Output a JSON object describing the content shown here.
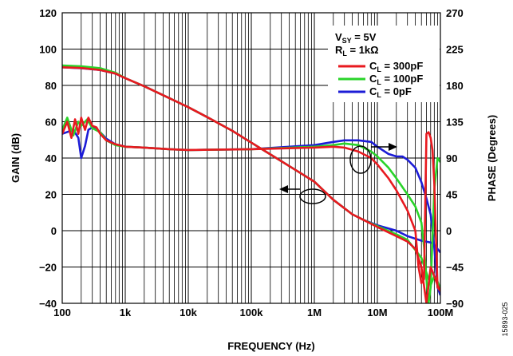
{
  "chart_data": {
    "type": "line",
    "xlabel": "FREQUENCY (Hz)",
    "ylabel": "GAIN (dB)",
    "y2label": "PHASE (Degrees)",
    "x_scale": "log",
    "xlim": [
      100,
      100000000
    ],
    "ylim": [
      -40,
      120
    ],
    "y2lim": [
      -90,
      270
    ],
    "grid": true,
    "x_tick_labels": [
      "100",
      "1k",
      "10k",
      "100k",
      "1M",
      "10M",
      "100M"
    ],
    "y_tick_labels": [
      "120",
      "100",
      "80",
      "60",
      "40",
      "20",
      "0",
      "−20",
      "−40"
    ],
    "y2_tick_labels": [
      "270",
      "225",
      "180",
      "135",
      "90",
      "45",
      "0",
      "−45",
      "−90"
    ],
    "legend_conditions": {
      "vsy": {
        "main": "V",
        "sub": "SY",
        "rest": " = 5V"
      },
      "rl": {
        "main": "R",
        "sub": "L",
        "rest": " = 1kΩ"
      }
    },
    "legend_placement": "top-right",
    "figure_code": "15893-025",
    "series": [
      {
        "name": "300pF",
        "label": {
          "main": "C",
          "sub": "L",
          "rest": " = 300pF"
        },
        "color": "#e8191f",
        "gain": {
          "x": [
            100,
            200,
            400,
            700,
            1000,
            2000,
            5000,
            10000,
            20000,
            50000,
            100000,
            200000,
            500000,
            1000000,
            2000000,
            4000000,
            6000000,
            10000000,
            20000000,
            30000000,
            40000000,
            50000000,
            60000000,
            70000000,
            80000000,
            90000000,
            100000000
          ],
          "y": [
            90,
            89.6,
            88.5,
            86.5,
            84,
            79.5,
            73,
            68,
            62.5,
            55,
            48.5,
            42,
            33.5,
            27,
            17,
            9,
            6,
            2,
            -3,
            -6,
            -10,
            -20,
            -40,
            -20,
            -25,
            -30,
            -33
          ]
        },
        "phase": {
          "x": [
            100,
            120,
            140,
            160,
            180,
            200,
            230,
            260,
            300,
            350,
            400,
            500,
            700,
            1000,
            2000,
            5000,
            10000,
            100000,
            1000000,
            2000000,
            3000000,
            5000000,
            8000000,
            10000000,
            15000000,
            20000000,
            30000000,
            40000000,
            45000000,
            50000000,
            55000000,
            60000000,
            65000000,
            70000000,
            75000000,
            80000000,
            90000000,
            100000000
          ],
          "y": [
            120,
            135,
            115,
            138,
            120,
            140,
            125,
            140,
            130,
            128,
            120,
            112,
            107,
            104,
            103,
            101,
            100,
            101,
            103,
            104,
            103,
            98,
            90,
            82,
            65,
            50,
            25,
            0,
            -45,
            -65,
            -60,
            120,
            122,
            115,
            100,
            60,
            -70,
            -75
          ]
        }
      },
      {
        "name": "100pF",
        "label": {
          "main": "C",
          "sub": "L",
          "rest": " = 100pF"
        },
        "color": "#2ad42a",
        "gain": {
          "x": [
            100,
            200,
            400,
            700,
            1000,
            2000,
            5000,
            10000,
            20000,
            50000,
            100000,
            200000,
            500000,
            1000000,
            2000000,
            4000000,
            6000000,
            10000000,
            20000000,
            30000000,
            50000000,
            70000000,
            80000000,
            90000000,
            100000000
          ],
          "y": [
            91,
            90.5,
            89.5,
            87,
            84,
            79.5,
            73,
            68,
            62.5,
            55,
            48.5,
            42,
            33.5,
            27,
            17,
            9,
            6,
            2.5,
            -2,
            -5,
            -15,
            -30,
            -25,
            -28,
            -32
          ]
        },
        "phase": {
          "x": [
            100,
            120,
            150,
            180,
            200,
            250,
            300,
            400,
            500,
            700,
            1000,
            2000,
            5000,
            10000,
            100000,
            1000000,
            2000000,
            3000000,
            5000000,
            8000000,
            10000000,
            15000000,
            20000000,
            30000000,
            40000000,
            50000000,
            55000000,
            60000000,
            65000000,
            70000000,
            80000000,
            90000000,
            100000000
          ],
          "y": [
            125,
            140,
            118,
            135,
            130,
            138,
            127,
            122,
            112,
            106,
            104,
            103,
            101,
            100,
            101,
            104,
            106,
            108,
            106,
            98,
            92,
            78,
            65,
            45,
            30,
            10,
            -20,
            -60,
            -90,
            -70,
            50,
            90,
            85
          ]
        }
      },
      {
        "name": "0pF",
        "label": {
          "main": "C",
          "sub": "L",
          "rest": " = 0pF"
        },
        "color": "#1c1cd6",
        "gain": {
          "x": [
            100,
            200,
            400,
            700,
            1000,
            2000,
            5000,
            10000,
            20000,
            50000,
            100000,
            200000,
            500000,
            1000000,
            2000000,
            4000000,
            6000000,
            10000000,
            20000000,
            30000000,
            50000000,
            70000000,
            80000000,
            90000000,
            100000000
          ],
          "y": [
            90,
            89.5,
            88.5,
            86.5,
            84,
            79.5,
            73,
            68,
            62.5,
            55,
            48.5,
            42,
            33.5,
            27,
            17,
            9,
            6,
            3,
            0,
            -3,
            -5.5,
            -6.5,
            -8,
            -10,
            -12
          ]
        },
        "phase": {
          "x": [
            100,
            150,
            180,
            200,
            230,
            260,
            300,
            400,
            500,
            700,
            1000,
            2000,
            5000,
            10000,
            100000,
            1000000,
            2000000,
            3000000,
            5000000,
            8000000,
            10000000,
            15000000,
            20000000,
            25000000,
            30000000,
            40000000,
            50000000,
            60000000,
            70000000,
            80000000,
            90000000,
            100000000
          ],
          "y": [
            120,
            125,
            115,
            90,
            105,
            125,
            128,
            122,
            114,
            107,
            104,
            103,
            101,
            100,
            101,
            106,
            110,
            112,
            112,
            110,
            104,
            95,
            92,
            92,
            88,
            78,
            60,
            40,
            20,
            -20,
            -70,
            -80
          ]
        }
      }
    ],
    "annotations": [
      {
        "text": "left arrow",
        "points_to": "GAIN axis"
      },
      {
        "text": "right arrow",
        "points_to": "PHASE axis"
      }
    ]
  }
}
